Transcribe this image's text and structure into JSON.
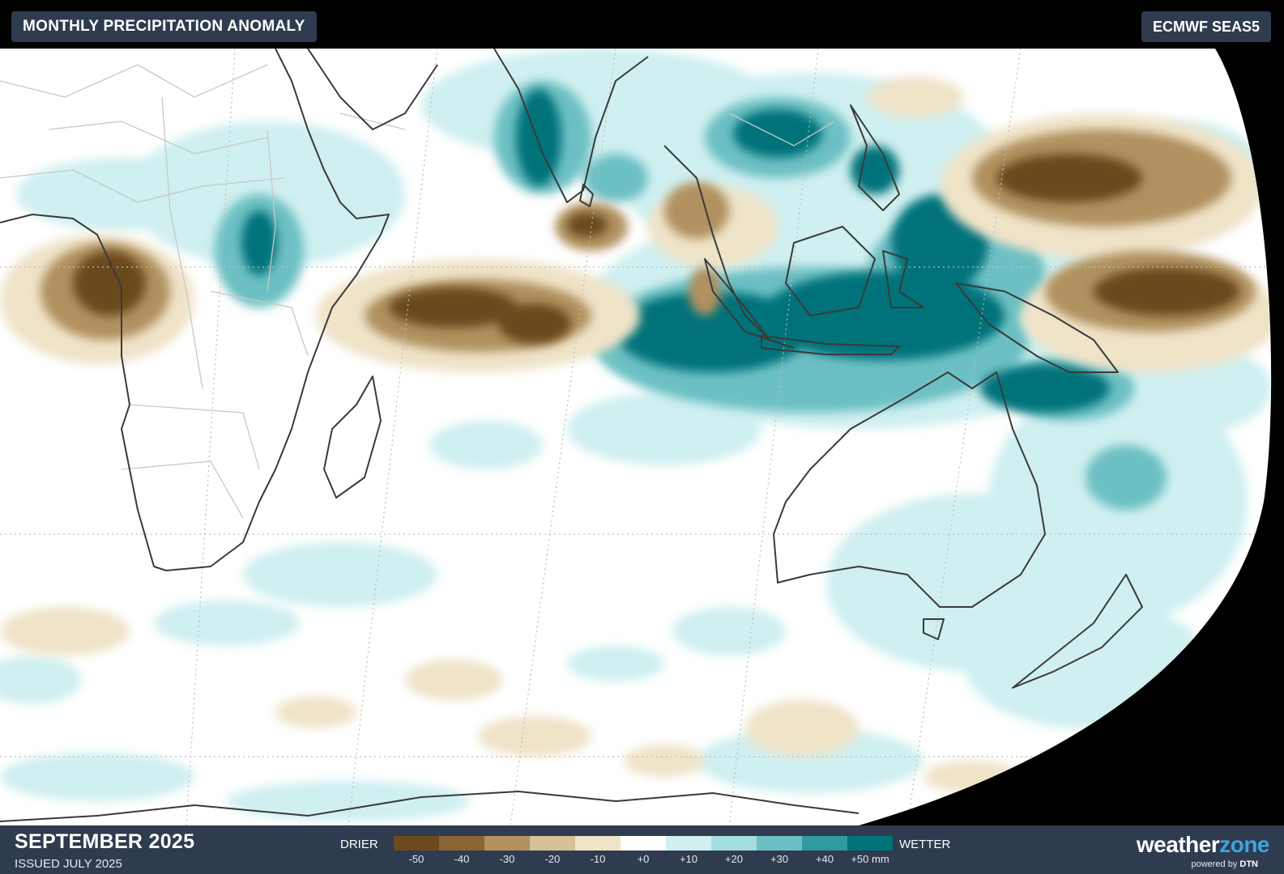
{
  "header": {
    "title": "MONTHLY PRECIPITATION ANOMALY",
    "model": "ECMWF SEAS5"
  },
  "footer": {
    "month": "SEPTEMBER 2025",
    "issued": "ISSUED JULY 2025"
  },
  "legend": {
    "drier_label": "DRIER",
    "wetter_label": "WETTER",
    "tick_labels": [
      "-50",
      "-40",
      "-30",
      "-20",
      "-10",
      "+0",
      "+10",
      "+20",
      "+30",
      "+40",
      "+50 mm"
    ],
    "colors": [
      "#6b4a1e",
      "#8a6533",
      "#b1915f",
      "#d6c095",
      "#efe3c8",
      "#ffffff",
      "#cfeff0",
      "#a3dde0",
      "#6cc0c3",
      "#2f9aa0",
      "#00727a"
    ]
  },
  "brand": {
    "name_part1": "weather",
    "name_part2": "zone",
    "powered_prefix": "powered by",
    "powered_brand": "DTN"
  },
  "map": {
    "ocean_color": "#ffffff",
    "space_color": "#000000",
    "coastline_color": "#3a3a3a",
    "border_color": "#c8c8c8",
    "dry_color": "#8a6533",
    "wet_color": "#00727a"
  }
}
